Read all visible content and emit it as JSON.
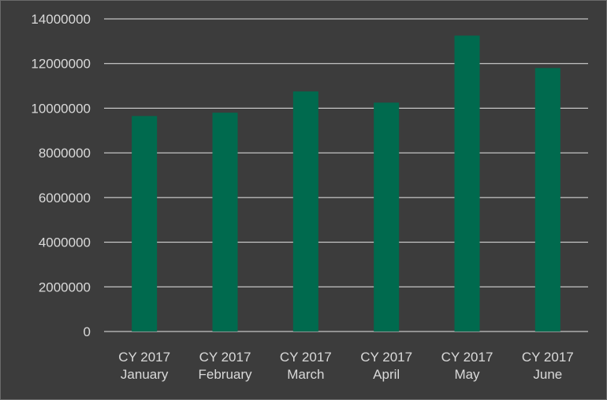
{
  "chart_data": {
    "type": "bar",
    "categories": [
      [
        "CY 2017",
        "January"
      ],
      [
        "CY 2017",
        "February"
      ],
      [
        "CY 2017",
        "March"
      ],
      [
        "CY 2017",
        "April"
      ],
      [
        "CY 2017",
        "May"
      ],
      [
        "CY 2017",
        "June"
      ]
    ],
    "values": [
      9650000,
      9800000,
      10750000,
      10250000,
      13250000,
      11800000
    ],
    "ylim": [
      0,
      14000000
    ],
    "yticks": [
      "0",
      "2000000",
      "4000000",
      "6000000",
      "8000000",
      "10000000",
      "12000000",
      "14000000"
    ],
    "ytick_values": [
      0,
      2000000,
      4000000,
      6000000,
      8000000,
      10000000,
      12000000,
      14000000
    ],
    "grid": true,
    "colors": {
      "bar": "#006a4e",
      "background": "#3c3c3c",
      "grid": "#e6e6e6",
      "text": "#d9d9d9"
    }
  }
}
